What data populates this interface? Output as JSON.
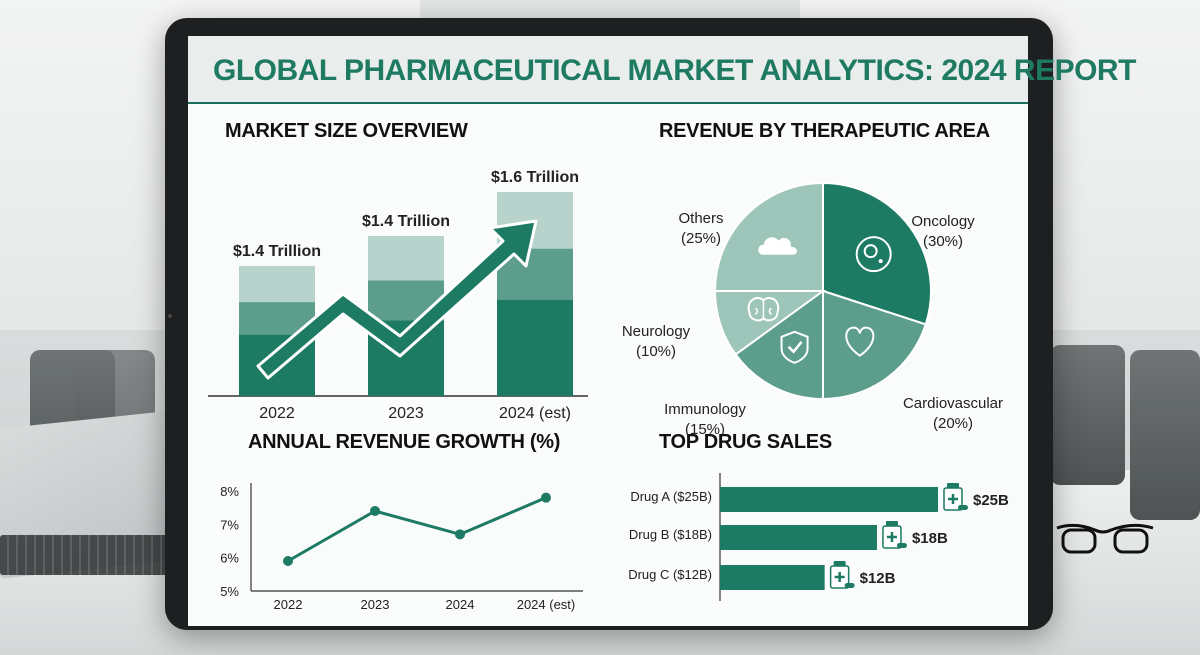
{
  "report": {
    "title": "GLOBAL PHARMACEUTICAL MARKET ANALYTICS: 2024 REPORT"
  },
  "sections": {
    "market_size": "MARKET SIZE OVERVIEW",
    "therapeutic": "REVENUE BY THERAPEUTIC AREA",
    "growth": "ANNUAL REVENUE GROWTH (%)",
    "drug_sales": "TOP DRUG SALES"
  },
  "colors": {
    "dark": "#1d7a63",
    "mid": "#5c9d8b",
    "light": "#9ec5ba",
    "pale": "#b7d3cb"
  },
  "chart_data": [
    {
      "type": "bar",
      "title": "MARKET SIZE OVERVIEW",
      "categories": [
        "2022",
        "2023",
        "2024 (est)"
      ],
      "values": [
        1.4,
        1.4,
        1.6
      ],
      "value_labels": [
        "$1.4 Trillion",
        "$1.4 Trillion",
        "$1.6 Trillion"
      ],
      "unit": "Trillion USD",
      "annotation": "upward trend arrow"
    },
    {
      "type": "pie",
      "title": "REVENUE BY THERAPEUTIC AREA",
      "slices": [
        {
          "name": "Oncology",
          "value": 30,
          "label": "(30%)",
          "icon": "cell-icon"
        },
        {
          "name": "Cardiovascular",
          "value": 20,
          "label": "(20%)",
          "icon": "heart-icon"
        },
        {
          "name": "Immunology",
          "value": 15,
          "label": "(15%)",
          "icon": "shield-icon"
        },
        {
          "name": "Neurology",
          "value": 10,
          "label": "(10%)",
          "icon": "brain-icon"
        },
        {
          "name": "Others",
          "value": 25,
          "label": "(25%)",
          "icon": "cloud-icon"
        }
      ]
    },
    {
      "type": "line",
      "title": "ANNUAL REVENUE GROWTH (%)",
      "x": [
        "2022",
        "2023",
        "2024",
        "2024 (est)"
      ],
      "y": [
        5.9,
        7.4,
        6.7,
        7.8
      ],
      "yticks": [
        "8%",
        "7%",
        "6%",
        "5%"
      ],
      "ylim": [
        5,
        8
      ]
    },
    {
      "type": "bar",
      "orientation": "horizontal",
      "title": "TOP DRUG SALES",
      "categories": [
        "Drug A ($25B)",
        "Drug B ($18B)",
        "Drug C ($12B)"
      ],
      "values": [
        25,
        18,
        12
      ],
      "value_labels": [
        "$25B",
        "$18B",
        "$12B"
      ],
      "icon": "pill-bottle-icon",
      "unit": "Billion USD"
    }
  ]
}
